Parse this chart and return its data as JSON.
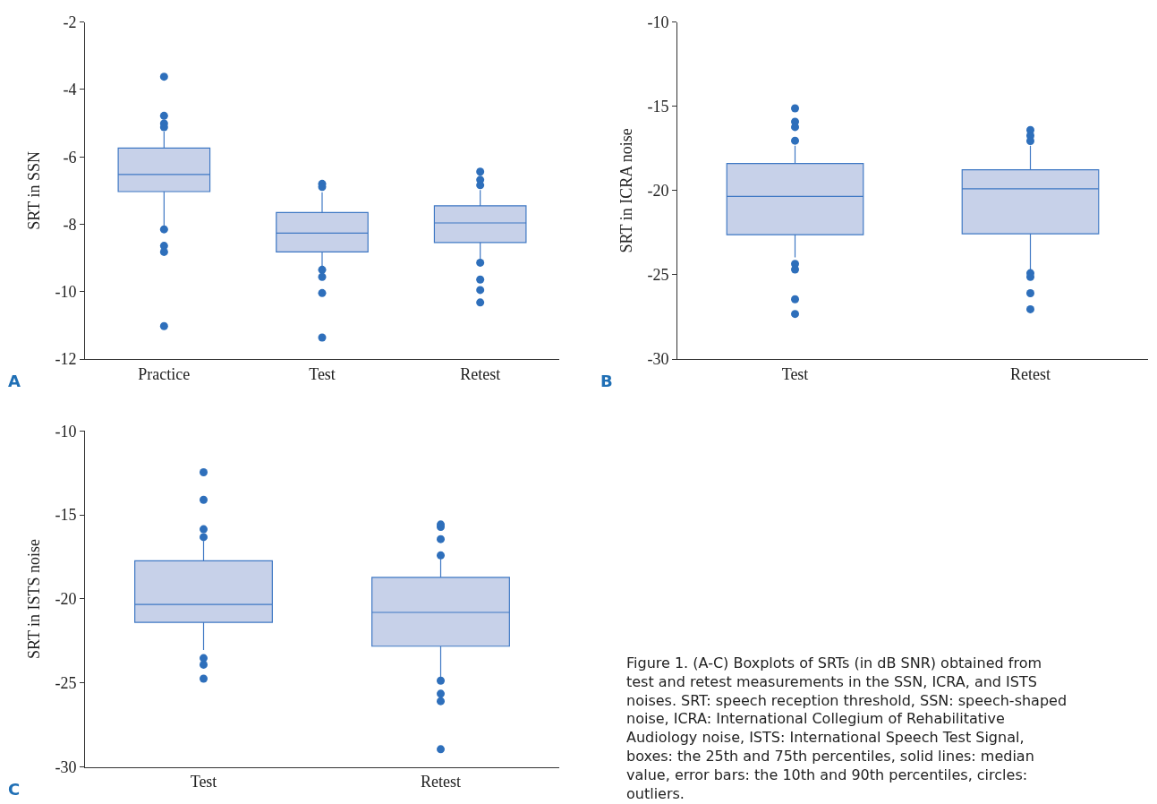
{
  "chart_data": [
    {
      "type": "box",
      "categories": [
        "Practice",
        "Test",
        "Retest"
      ],
      "ylabel": "SRT in SSN",
      "ylim": [
        -12,
        -2
      ],
      "yticks": [
        -12,
        -10,
        -8,
        -6,
        -4,
        -2
      ],
      "color": "#c7d1e9",
      "marker": "circle",
      "annotations": [
        "A"
      ],
      "boxes": [
        {
          "low": -8.05,
          "q1": -7.03,
          "median": -6.52,
          "q3": -5.74,
          "high": -5.25,
          "outliers": [
            -3.62,
            -4.78,
            -5.01,
            -5.12,
            -8.15,
            -8.64,
            -8.82,
            -11.02
          ]
        },
        {
          "low": -9.26,
          "q1": -8.82,
          "median": -8.26,
          "q3": -7.65,
          "high": -7.05,
          "outliers": [
            -6.8,
            -6.89,
            -9.35,
            -9.56,
            -10.04,
            -11.36
          ]
        },
        {
          "low": -9.04,
          "q1": -8.54,
          "median": -7.96,
          "q3": -7.45,
          "high": -6.98,
          "outliers": [
            -6.44,
            -6.68,
            -6.84,
            -9.14,
            -9.64,
            -9.95,
            -10.32
          ]
        }
      ]
    },
    {
      "type": "box",
      "categories": [
        "Test",
        "Retest"
      ],
      "ylabel": "SRT in ICRA noise",
      "ylim": [
        -30,
        -10
      ],
      "yticks": [
        -30,
        -25,
        -20,
        -15,
        -10
      ],
      "color": "#c7d1e9",
      "marker": "circle",
      "annotations": [
        "B"
      ],
      "boxes": [
        {
          "low": -23.97,
          "q1": -22.62,
          "median": -20.35,
          "q3": -18.39,
          "high": -17.34,
          "outliers": [
            -15.12,
            -15.91,
            -16.23,
            -17.04,
            -24.35,
            -24.68,
            -26.45,
            -27.32
          ]
        },
        {
          "low": -24.8,
          "q1": -22.56,
          "median": -19.89,
          "q3": -18.76,
          "high": -17.34,
          "outliers": [
            -16.41,
            -16.74,
            -17.06,
            -24.9,
            -25.12,
            -26.09,
            -27.04
          ]
        }
      ]
    },
    {
      "type": "box",
      "categories": [
        "Test",
        "Retest"
      ],
      "ylabel": "SRT in ISTS noise",
      "ylim": [
        -30,
        -10
      ],
      "yticks": [
        -30,
        -25,
        -20,
        -15,
        -10
      ],
      "color": "#c7d1e9",
      "marker": "circle",
      "annotations": [
        "C",
        "Figure 1. (A-C) Boxplots of SRTs (in dB SNR) obtained from test and retest measurements in the SSN, ICRA, and ISTS noises. SRT: speech reception threshold, SSN: speech-shaped noise, ICRA: International Collegium of Rehabilitative Audiology noise, ISTS: International Speech Test Signal, boxes: the 25th and 75th percentiles, solid lines: median value, error bars: the 10th and 90th percentiles, circles: outliers."
      ],
      "boxes": [
        {
          "low": -23.04,
          "q1": -21.39,
          "median": -20.33,
          "q3": -17.73,
          "high": -16.55,
          "outliers": [
            -12.46,
            -14.1,
            -15.85,
            -16.32,
            -23.52,
            -23.91,
            -24.74
          ]
        },
        {
          "low": -24.65,
          "q1": -22.81,
          "median": -20.8,
          "q3": -18.72,
          "high": -17.62,
          "outliers": [
            -15.57,
            -15.71,
            -16.44,
            -17.41,
            -24.86,
            -25.64,
            -26.08,
            -28.94
          ]
        }
      ]
    }
  ]
}
